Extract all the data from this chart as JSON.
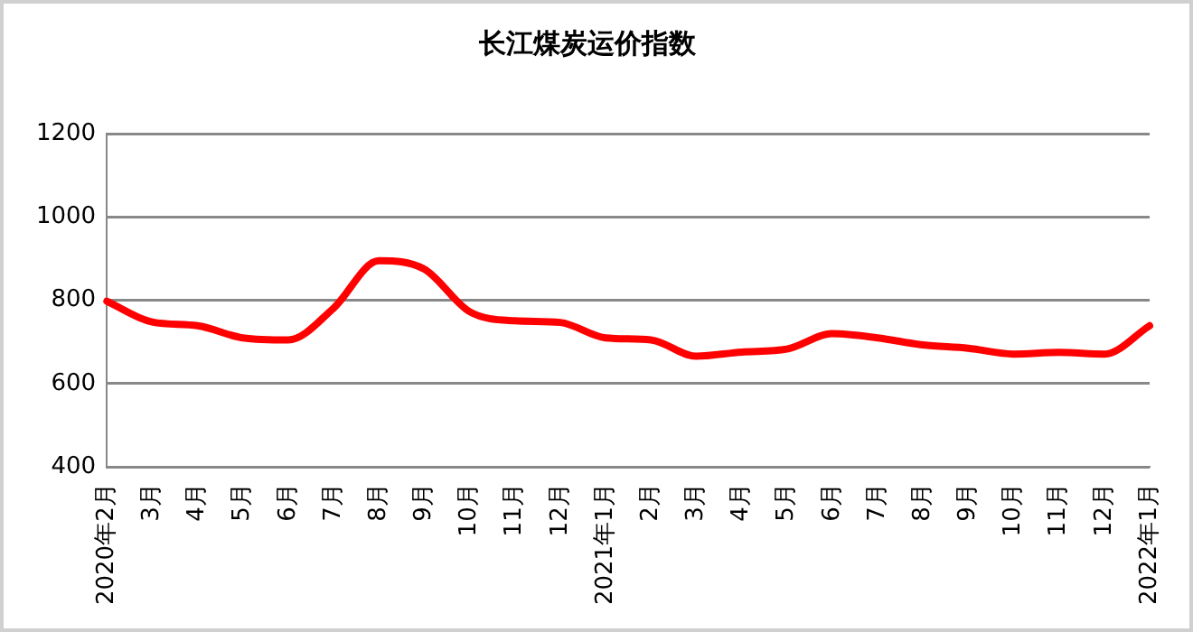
{
  "chart_data": {
    "type": "line",
    "title": "长江煤炭运价指数",
    "categories": [
      "2020年2月",
      "3月",
      "4月",
      "5月",
      "6月",
      "7月",
      "8月",
      "9月",
      "10月",
      "11月",
      "12月",
      "2021年1月",
      "2月",
      "3月",
      "4月",
      "5月",
      "6月",
      "7月",
      "8月",
      "9月",
      "10月",
      "11月",
      "12月",
      "2022年1月"
    ],
    "series": [
      {
        "color": "#ff0000",
        "values": [
          798,
          748,
          739,
          710,
          705,
          781,
          895,
          875,
          773,
          751,
          747,
          710,
          705,
          666,
          676,
          683,
          720,
          710,
          693,
          685,
          671,
          675,
          671,
          739
        ]
      }
    ],
    "ylim": [
      400,
      1200
    ],
    "yticks": [
      400,
      600,
      800,
      1000,
      1200
    ],
    "grid": "y",
    "legend": false,
    "marker": "none",
    "line_style": "solid"
  }
}
